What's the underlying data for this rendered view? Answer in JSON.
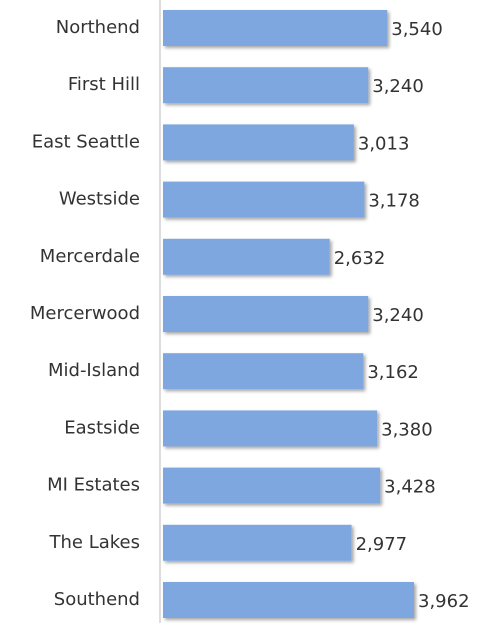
{
  "chart_data": {
    "type": "bar",
    "orientation": "horizontal",
    "categories": [
      "Northend",
      "First Hill",
      "East Seattle",
      "Westside",
      "Mercerdale",
      "Mercerwood",
      "Mid-Island",
      "Eastside",
      "MI Estates",
      "The Lakes",
      "Southend"
    ],
    "values": [
      3540,
      3240,
      3013,
      3178,
      2632,
      3240,
      3162,
      3380,
      3428,
      2977,
      3962
    ],
    "value_labels": [
      "3,540",
      "3,240",
      "3,013",
      "3,178",
      "2,632",
      "3,240",
      "3,162",
      "3,380",
      "3,428",
      "2,977",
      "3,962"
    ],
    "color": "#7ea7e0"
  }
}
